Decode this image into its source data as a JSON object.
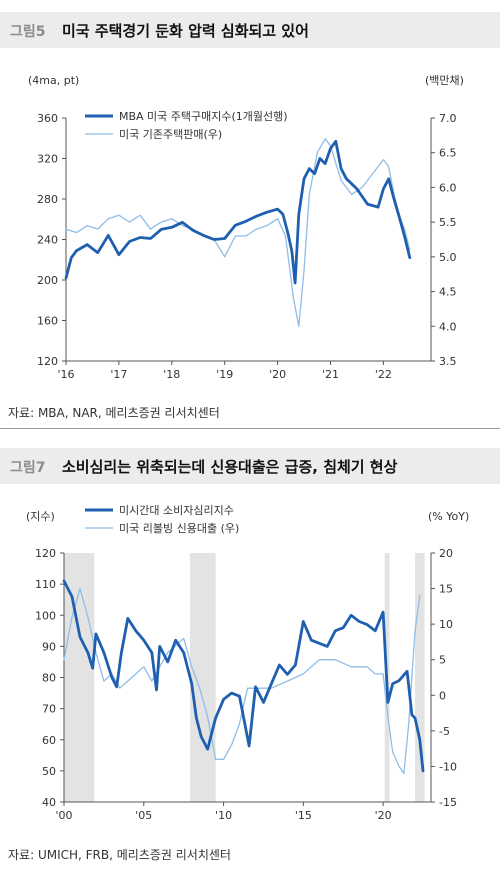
{
  "figures": [
    {
      "label": "그림5",
      "title": "미국 주택경기 둔화 압력 심화되고 있어",
      "source": "자료: MBA, NAR, 메리츠증권 리서치센터",
      "unit_left": "(4ma, pt)",
      "unit_right": "(백만채)"
    },
    {
      "label": "그림7",
      "title": "소비심리는 위축되는데 신용대출은 급증, 침체기 현상",
      "source": "자료: UMICH, FRB, 메리츠증권 리서치센터",
      "unit_left": "(지수)",
      "unit_right": "(% YoY)"
    }
  ],
  "chart_data": [
    {
      "type": "line",
      "xlabel": "",
      "ylabel": "(4ma, pt)",
      "y2label": "(백만채)",
      "ylim": [
        120,
        360
      ],
      "y2lim": [
        3.5,
        7.0
      ],
      "xlim": [
        2016.0,
        2022.9
      ],
      "x_ticks": [
        "'16",
        "'17",
        "'18",
        "'19",
        "'20",
        "'21",
        "'22"
      ],
      "y_ticks": [
        120,
        160,
        200,
        240,
        280,
        320,
        360
      ],
      "y2_ticks": [
        "3.5",
        "4.0",
        "4.5",
        "5.0",
        "5.5",
        "6.0",
        "6.5",
        "7.0"
      ],
      "legend": "top-left",
      "grid": false,
      "series": [
        {
          "name": "MBA 미국 주택구매지수(1개월선행)",
          "axis": "left",
          "color": "#1f5fb0",
          "x": [
            2016.0,
            2016.1,
            2016.2,
            2016.4,
            2016.6,
            2016.8,
            2017.0,
            2017.2,
            2017.4,
            2017.6,
            2017.8,
            2018.0,
            2018.2,
            2018.4,
            2018.6,
            2018.8,
            2019.0,
            2019.2,
            2019.4,
            2019.6,
            2019.8,
            2020.0,
            2020.1,
            2020.2,
            2020.27,
            2020.33,
            2020.4,
            2020.5,
            2020.6,
            2020.7,
            2020.8,
            2020.9,
            2021.0,
            2021.1,
            2021.2,
            2021.3,
            2021.4,
            2021.5,
            2021.7,
            2021.9,
            2022.0,
            2022.1,
            2022.2,
            2022.3,
            2022.4,
            2022.5
          ],
          "y": [
            202,
            222,
            229,
            235,
            227,
            244,
            225,
            238,
            242,
            241,
            250,
            252,
            257,
            249,
            244,
            240,
            241,
            254,
            258,
            263,
            267,
            270,
            265,
            245,
            228,
            197,
            265,
            300,
            310,
            305,
            320,
            315,
            330,
            337,
            310,
            300,
            295,
            290,
            275,
            272,
            290,
            300,
            280,
            262,
            243,
            222
          ]
        },
        {
          "name": "미국 기존주택판매(우)",
          "axis": "right",
          "color": "#8fbde8",
          "x": [
            2016.0,
            2016.2,
            2016.4,
            2016.6,
            2016.8,
            2017.0,
            2017.2,
            2017.4,
            2017.6,
            2017.8,
            2018.0,
            2018.2,
            2018.4,
            2018.6,
            2018.8,
            2019.0,
            2019.2,
            2019.4,
            2019.6,
            2019.8,
            2020.0,
            2020.15,
            2020.3,
            2020.4,
            2020.5,
            2020.6,
            2020.75,
            2020.9,
            2021.0,
            2021.2,
            2021.4,
            2021.6,
            2021.8,
            2022.0,
            2022.1,
            2022.2,
            2022.3,
            2022.4,
            2022.5
          ],
          "y": [
            5.4,
            5.35,
            5.45,
            5.4,
            5.55,
            5.6,
            5.5,
            5.6,
            5.4,
            5.5,
            5.55,
            5.45,
            5.4,
            5.3,
            5.25,
            5.0,
            5.3,
            5.3,
            5.4,
            5.45,
            5.55,
            5.3,
            4.4,
            4.0,
            4.8,
            5.9,
            6.5,
            6.7,
            6.6,
            6.1,
            5.9,
            6.0,
            6.2,
            6.4,
            6.3,
            5.9,
            5.6,
            5.4,
            5.1
          ]
        }
      ]
    },
    {
      "type": "line",
      "xlabel": "",
      "ylabel": "(지수)",
      "y2label": "(% YoY)",
      "ylim": [
        40,
        120
      ],
      "y2lim": [
        -15,
        20
      ],
      "xlim": [
        2000,
        2023
      ],
      "x_ticks": [
        "'00",
        "'05",
        "'10",
        "'15",
        "'20"
      ],
      "y_ticks": [
        40,
        50,
        60,
        70,
        80,
        90,
        100,
        110,
        120
      ],
      "y2_ticks": [
        -15,
        -10,
        -5,
        0,
        5,
        10,
        15,
        20
      ],
      "legend": "top-center",
      "grid": false,
      "shaded_periods": [
        [
          2000.0,
          2001.9
        ],
        [
          2007.9,
          2009.5
        ],
        [
          2020.1,
          2020.4
        ],
        [
          2022.0,
          2022.6
        ]
      ],
      "series": [
        {
          "name": "미시간대 소비자심리지수",
          "axis": "left",
          "color": "#1f5fb0",
          "x": [
            2000.0,
            2000.5,
            2001.0,
            2001.5,
            2001.8,
            2002.0,
            2002.5,
            2003.0,
            2003.3,
            2003.6,
            2004.0,
            2004.5,
            2005.0,
            2005.5,
            2005.8,
            2006.0,
            2006.5,
            2007.0,
            2007.5,
            2008.0,
            2008.3,
            2008.6,
            2009.0,
            2009.5,
            2010.0,
            2010.5,
            2011.0,
            2011.6,
            2012.0,
            2012.5,
            2013.0,
            2013.5,
            2014.0,
            2014.5,
            2015.0,
            2015.5,
            2016.0,
            2016.5,
            2017.0,
            2017.5,
            2018.0,
            2018.5,
            2019.0,
            2019.5,
            2020.0,
            2020.3,
            2020.6,
            2021.0,
            2021.5,
            2021.8,
            2022.0,
            2022.3,
            2022.5
          ],
          "y": [
            111,
            106,
            93,
            88,
            83,
            94,
            88,
            80,
            77,
            88,
            99,
            95,
            92,
            88,
            76,
            90,
            85,
            92,
            88,
            78,
            67,
            61,
            57,
            67,
            73,
            75,
            74,
            58,
            77,
            72,
            78,
            84,
            81,
            84,
            98,
            92,
            91,
            90,
            95,
            96,
            100,
            98,
            97,
            95,
            101,
            72,
            78,
            79,
            82,
            68,
            67,
            60,
            50
          ]
        },
        {
          "name": "미국 리볼빙 신용대출 (우)",
          "axis": "right",
          "color": "#8fbde8",
          "x": [
            2000.0,
            2000.5,
            2001.0,
            2001.5,
            2002.0,
            2002.5,
            2003.0,
            2003.5,
            2004.0,
            2004.5,
            2005.0,
            2005.5,
            2006.0,
            2006.5,
            2007.0,
            2007.5,
            2008.0,
            2008.5,
            2009.0,
            2009.5,
            2010.0,
            2010.5,
            2011.0,
            2011.5,
            2012.0,
            2013.0,
            2014.0,
            2015.0,
            2016.0,
            2017.0,
            2018.0,
            2019.0,
            2019.5,
            2020.0,
            2020.3,
            2020.6,
            2021.0,
            2021.3,
            2021.6,
            2022.0,
            2022.3
          ],
          "y": [
            5,
            11,
            15,
            11,
            6,
            2,
            3,
            1,
            2,
            3,
            4,
            2,
            4,
            6,
            7,
            8,
            4,
            1,
            -3,
            -9,
            -9,
            -7,
            -4,
            1,
            1,
            1,
            2,
            3,
            5,
            5,
            4,
            4,
            3,
            3,
            -3,
            -8,
            -10,
            -11,
            -4,
            9,
            14
          ]
        }
      ]
    }
  ]
}
